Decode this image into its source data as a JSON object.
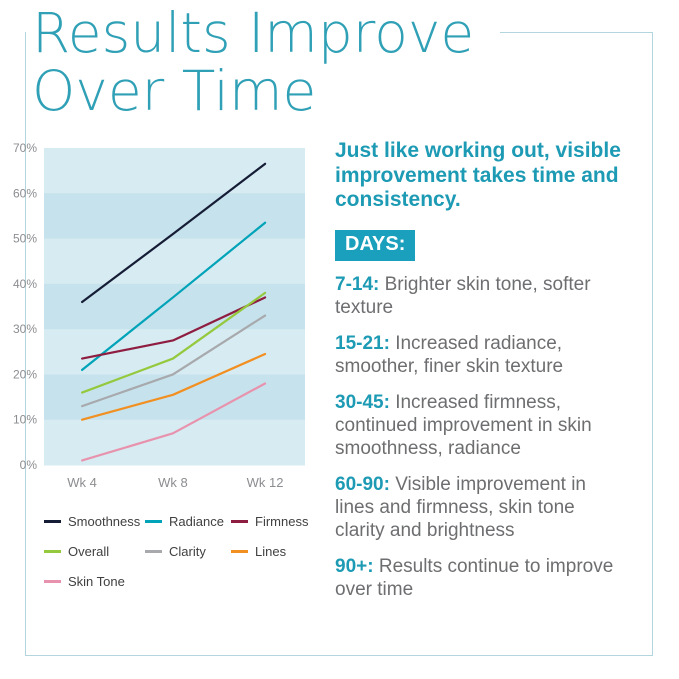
{
  "title": {
    "line1": "Results Improve",
    "line2": "Over Time"
  },
  "colors": {
    "title_teal": "#2fa0b6",
    "accent_teal": "#1d9ab4",
    "badge_teal": "#1aa0bc",
    "body_gray": "#6d6e70",
    "axis_gray": "#8b8d90",
    "legend_text": "#414042",
    "box_border": "#b3d5dd"
  },
  "chart_data": {
    "type": "line",
    "title": "",
    "xlabel": "",
    "ylabel": "",
    "categories": [
      "Wk 4",
      "Wk 8",
      "Wk 12"
    ],
    "series": [
      {
        "name": "Smoothness",
        "color": "#151c35",
        "values": [
          36,
          51,
          66.5
        ]
      },
      {
        "name": "Radiance",
        "color": "#00a3b8",
        "values": [
          21,
          37,
          53.5
        ]
      },
      {
        "name": "Firmness",
        "color": "#8e1e41",
        "values": [
          23.5,
          27.5,
          37
        ]
      },
      {
        "name": "Overall",
        "color": "#94c93d",
        "values": [
          16,
          23.5,
          38
        ]
      },
      {
        "name": "Clarity",
        "color": "#a7a9ac",
        "values": [
          13,
          20,
          33
        ]
      },
      {
        "name": "Lines",
        "color": "#f18f21",
        "values": [
          10,
          15.5,
          24.5
        ]
      },
      {
        "name": "Skin Tone",
        "color": "#e893ad",
        "values": [
          1,
          7,
          18
        ]
      }
    ],
    "ylim": [
      0,
      70
    ],
    "ytick_step": 10,
    "ytick_suffix": "%",
    "grid": "horizontal-bands",
    "band_colors": [
      "#d7ebf2",
      "#c6e2ec"
    ],
    "legend_position": "bottom"
  },
  "right_panel": {
    "intro": "Just like working out, visible improvement takes time and consistency.",
    "badge": "DAYS:",
    "entries": [
      {
        "range": "7-14:",
        "text": "Brighter skin tone, softer texture"
      },
      {
        "range": "15-21:",
        "text": "Increased radiance, smoother, finer skin texture"
      },
      {
        "range": "30-45:",
        "text": "Increased firmness, continued improvement in skin smoothness, radiance"
      },
      {
        "range": "60-90:",
        "text": "Visible improvement in lines and firmness, skin tone clarity and brightness"
      },
      {
        "range": "90+:",
        "text": "Results continue to improve over time"
      }
    ]
  }
}
